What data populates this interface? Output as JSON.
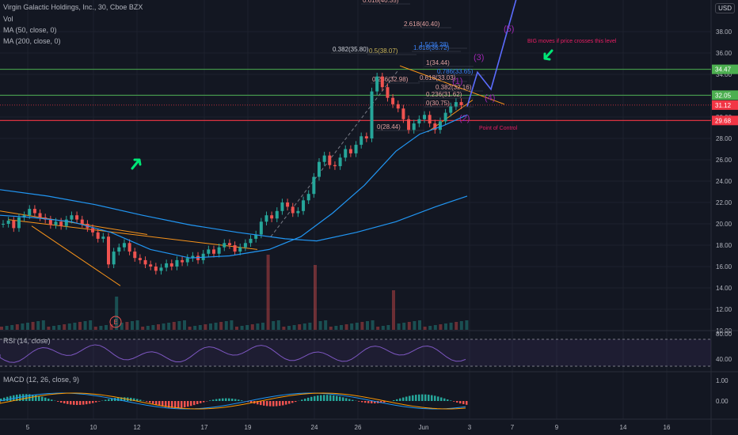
{
  "header": {
    "title": "Virgin Galactic Holdings, Inc., 30, Cboe BZX",
    "vol": "Vol",
    "ma50": "MA (50, close, 0)",
    "ma200": "MA (200, close, 0)"
  },
  "currency": "USD",
  "rsi_label": "RSI (14, close)",
  "macd_label": "MACD (12, 26, close, 9)",
  "chart_data": {
    "type": "candlestick",
    "y_ticks": [
      "38.00",
      "36.00",
      "34.00",
      "32.00",
      "30.00",
      "28.00",
      "26.00",
      "24.00",
      "22.00",
      "20.00",
      "18.00",
      "16.00",
      "14.00",
      "12.00",
      "10.00"
    ],
    "x_ticks": [
      "5",
      "10",
      "12",
      "17",
      "19",
      "24",
      "26",
      "Jun",
      "3",
      "7",
      "9",
      "14",
      "16"
    ],
    "price_tags": [
      {
        "label": "34.47",
        "color": "#4caf50",
        "value": 34.47
      },
      {
        "label": "32.05",
        "color": "#4caf50",
        "value": 32.05
      },
      {
        "label": "31.12",
        "color": "#f23645",
        "value": 31.12
      },
      {
        "label": "29.68",
        "color": "#f23645",
        "value": 29.68
      }
    ],
    "rsi_ticks": [
      "80.00",
      "40.00"
    ],
    "macd_ticks": [
      "1.00",
      "0.00"
    ],
    "fib_labels": [
      "0.618(40.35)",
      "2.618(40.40)",
      "0.5(38.07)",
      "1.618(36.72)",
      "1.5(36.28)",
      "0.382(35.80)",
      "1(34.44)",
      "0.786(33.65)",
      "0.618(33.03)",
      "0.236(32.98)",
      "0.382(32.16)",
      "0.236(31.62)",
      "0(30.75)",
      "0(28.44)"
    ],
    "wave_labels": [
      "(1)",
      "(2)",
      "(3)",
      "(4)",
      "(5)"
    ],
    "annotations": {
      "big_move": "BIG moves if price crosses this level",
      "poc": "Point of Control",
      "earnings": "E"
    },
    "closes": [
      20.0,
      20.3,
      19.6,
      20.6,
      20.8,
      21.4,
      21.0,
      20.6,
      20.4,
      19.9,
      20.2,
      19.8,
      20.4,
      20.8,
      20.4,
      20.0,
      19.6,
      19.2,
      18.6,
      18.8,
      16.2,
      17.4,
      17.8,
      18.2,
      17.4,
      16.8,
      16.6,
      16.2,
      16.0,
      15.6,
      15.9,
      16.3,
      16.0,
      16.6,
      16.4,
      16.8,
      17.0,
      16.6,
      17.2,
      17.6,
      17.2,
      17.8,
      18.2,
      18.0,
      17.4,
      17.8,
      18.2,
      18.6,
      19.0,
      20.2,
      20.8,
      20.5,
      21.2,
      22.0,
      21.6,
      21.0,
      21.2,
      22.2,
      22.8,
      24.4,
      25.8,
      26.4,
      25.5,
      25.4,
      26.2,
      27.0,
      26.6,
      27.4,
      28.2,
      28.0,
      32.4,
      33.8,
      32.8,
      31.8,
      31.2,
      30.8,
      29.8,
      28.8,
      29.4,
      29.8,
      30.2,
      29.4,
      28.8,
      29.6,
      30.4,
      31.0,
      31.4,
      31.1
    ]
  }
}
